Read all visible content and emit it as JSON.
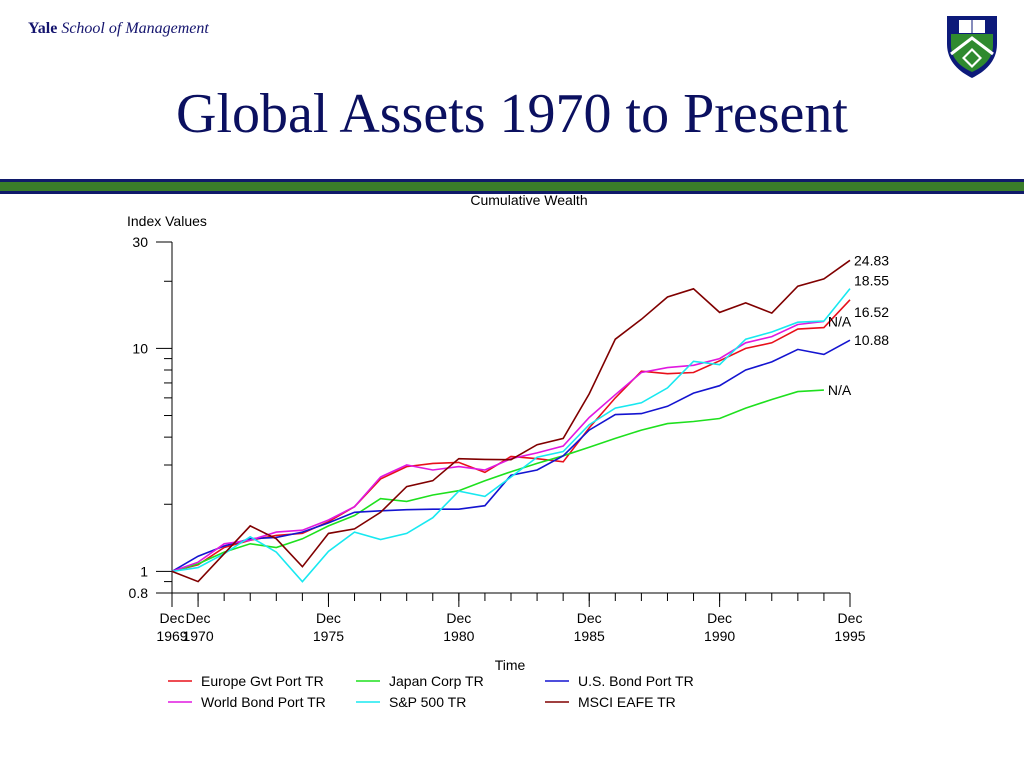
{
  "header": {
    "brand_bold": "Yale",
    "brand_italic": "School of Management",
    "title": "Global Assets 1970 to Present"
  },
  "colors": {
    "title": "#0b1060",
    "band_green": "#3a7d2a",
    "band_navy": "#101a6a"
  },
  "chart_data": {
    "type": "line",
    "title": "Cumulative Wealth",
    "ylabel": "Index Values",
    "xlabel": "Time",
    "yscale": "log",
    "ylim": [
      0.8,
      30
    ],
    "y_ticks": [
      {
        "value": 30,
        "label": "30"
      },
      {
        "value": 10,
        "label": "10"
      },
      {
        "value": 1,
        "label": "1"
      },
      {
        "value": 0.8,
        "label": "0.8"
      }
    ],
    "xlim": [
      1969,
      1995
    ],
    "x_ticks": [
      {
        "value": 1969,
        "label": [
          "Dec",
          "1969"
        ]
      },
      {
        "value": 1970,
        "label": [
          "Dec",
          "1970"
        ]
      },
      {
        "value": 1975,
        "label": [
          "Dec",
          "1975"
        ]
      },
      {
        "value": 1980,
        "label": [
          "Dec",
          "1980"
        ]
      },
      {
        "value": 1985,
        "label": [
          "Dec",
          "1985"
        ]
      },
      {
        "value": 1990,
        "label": [
          "Dec",
          "1990"
        ]
      },
      {
        "value": 1995,
        "label": [
          "Dec",
          "1995"
        ]
      }
    ],
    "legend_position": "bottom",
    "series": [
      {
        "name": "Europe Gvt Port TR",
        "color": "#e8101a",
        "end_label": "16.52",
        "x": [
          1969,
          1970,
          1971,
          1972,
          1973,
          1974,
          1975,
          1976,
          1977,
          1978,
          1979,
          1980,
          1981,
          1982,
          1983,
          1984,
          1985,
          1986,
          1987,
          1988,
          1989,
          1990,
          1991,
          1992,
          1993,
          1994,
          1995
        ],
        "y": [
          1.0,
          1.07,
          1.28,
          1.38,
          1.45,
          1.48,
          1.67,
          1.95,
          2.6,
          2.95,
          3.05,
          3.08,
          2.78,
          3.28,
          3.2,
          3.1,
          4.4,
          6.0,
          7.9,
          7.7,
          7.8,
          8.8,
          10.0,
          10.6,
          12.2,
          12.4,
          16.52
        ]
      },
      {
        "name": "Japan Corp TR",
        "color": "#1ee01e",
        "end_label": "N/A",
        "x": [
          1969,
          1970,
          1971,
          1972,
          1973,
          1974,
          1975,
          1976,
          1977,
          1978,
          1979,
          1980,
          1981,
          1982,
          1983,
          1984,
          1985,
          1986,
          1987,
          1988,
          1989,
          1990,
          1991,
          1992,
          1993,
          1994,
          1995
        ],
        "y": [
          1.0,
          1.08,
          1.22,
          1.33,
          1.28,
          1.4,
          1.6,
          1.78,
          2.12,
          2.06,
          2.2,
          2.3,
          2.55,
          2.8,
          3.05,
          3.3,
          3.6,
          3.95,
          4.3,
          4.6,
          4.7,
          4.85,
          5.4,
          5.9,
          6.4,
          6.5,
          null
        ]
      },
      {
        "name": "U.S. Bond Port TR",
        "color": "#1414d0",
        "end_label": "10.88",
        "x": [
          1969,
          1970,
          1971,
          1972,
          1973,
          1974,
          1975,
          1976,
          1977,
          1978,
          1979,
          1980,
          1981,
          1982,
          1983,
          1984,
          1985,
          1986,
          1987,
          1988,
          1989,
          1990,
          1991,
          1992,
          1993,
          1994,
          1995
        ],
        "y": [
          1.0,
          1.17,
          1.3,
          1.4,
          1.42,
          1.5,
          1.65,
          1.84,
          1.87,
          1.89,
          1.9,
          1.9,
          1.97,
          2.7,
          2.85,
          3.3,
          4.3,
          5.05,
          5.1,
          5.5,
          6.3,
          6.8,
          8.0,
          8.7,
          9.9,
          9.4,
          10.88
        ]
      },
      {
        "name": "World Bond Port TR",
        "color": "#e018e0",
        "end_label": "N/A",
        "x": [
          1969,
          1970,
          1971,
          1972,
          1973,
          1974,
          1975,
          1976,
          1977,
          1978,
          1979,
          1980,
          1981,
          1982,
          1983,
          1984,
          1985,
          1986,
          1987,
          1988,
          1989,
          1990,
          1991,
          1992,
          1993,
          1994,
          1995
        ],
        "y": [
          1.0,
          1.1,
          1.33,
          1.38,
          1.5,
          1.53,
          1.7,
          1.95,
          2.65,
          3.0,
          2.85,
          2.95,
          2.85,
          3.2,
          3.4,
          3.65,
          4.9,
          6.2,
          7.8,
          8.2,
          8.4,
          9.0,
          10.6,
          11.3,
          12.8,
          13.2,
          null
        ]
      },
      {
        "name": "S&P 500 TR",
        "color": "#18e8f0",
        "end_label": "18.55",
        "x": [
          1969,
          1970,
          1971,
          1972,
          1973,
          1974,
          1975,
          1976,
          1977,
          1978,
          1979,
          1980,
          1981,
          1982,
          1983,
          1984,
          1985,
          1986,
          1987,
          1988,
          1989,
          1990,
          1991,
          1992,
          1993,
          1994,
          1995
        ],
        "y": [
          1.0,
          1.04,
          1.2,
          1.43,
          1.22,
          0.9,
          1.23,
          1.5,
          1.39,
          1.48,
          1.74,
          2.29,
          2.17,
          2.65,
          3.25,
          3.45,
          4.55,
          5.4,
          5.7,
          6.65,
          8.75,
          8.45,
          11.0,
          11.85,
          13.1,
          13.25,
          18.55
        ]
      },
      {
        "name": "MSCI EAFE TR",
        "color": "#800000",
        "end_label": "24.83",
        "x": [
          1969,
          1970,
          1971,
          1972,
          1973,
          1974,
          1975,
          1976,
          1977,
          1978,
          1979,
          1980,
          1981,
          1982,
          1983,
          1984,
          1985,
          1986,
          1987,
          1988,
          1989,
          1990,
          1991,
          1992,
          1993,
          1994,
          1995
        ],
        "y": [
          1.0,
          0.9,
          1.2,
          1.6,
          1.4,
          1.05,
          1.48,
          1.55,
          1.84,
          2.4,
          2.55,
          3.2,
          3.18,
          3.17,
          3.7,
          3.95,
          6.25,
          11.0,
          13.5,
          17.0,
          18.5,
          14.5,
          16.0,
          14.4,
          19.0,
          20.5,
          24.83
        ]
      }
    ]
  }
}
